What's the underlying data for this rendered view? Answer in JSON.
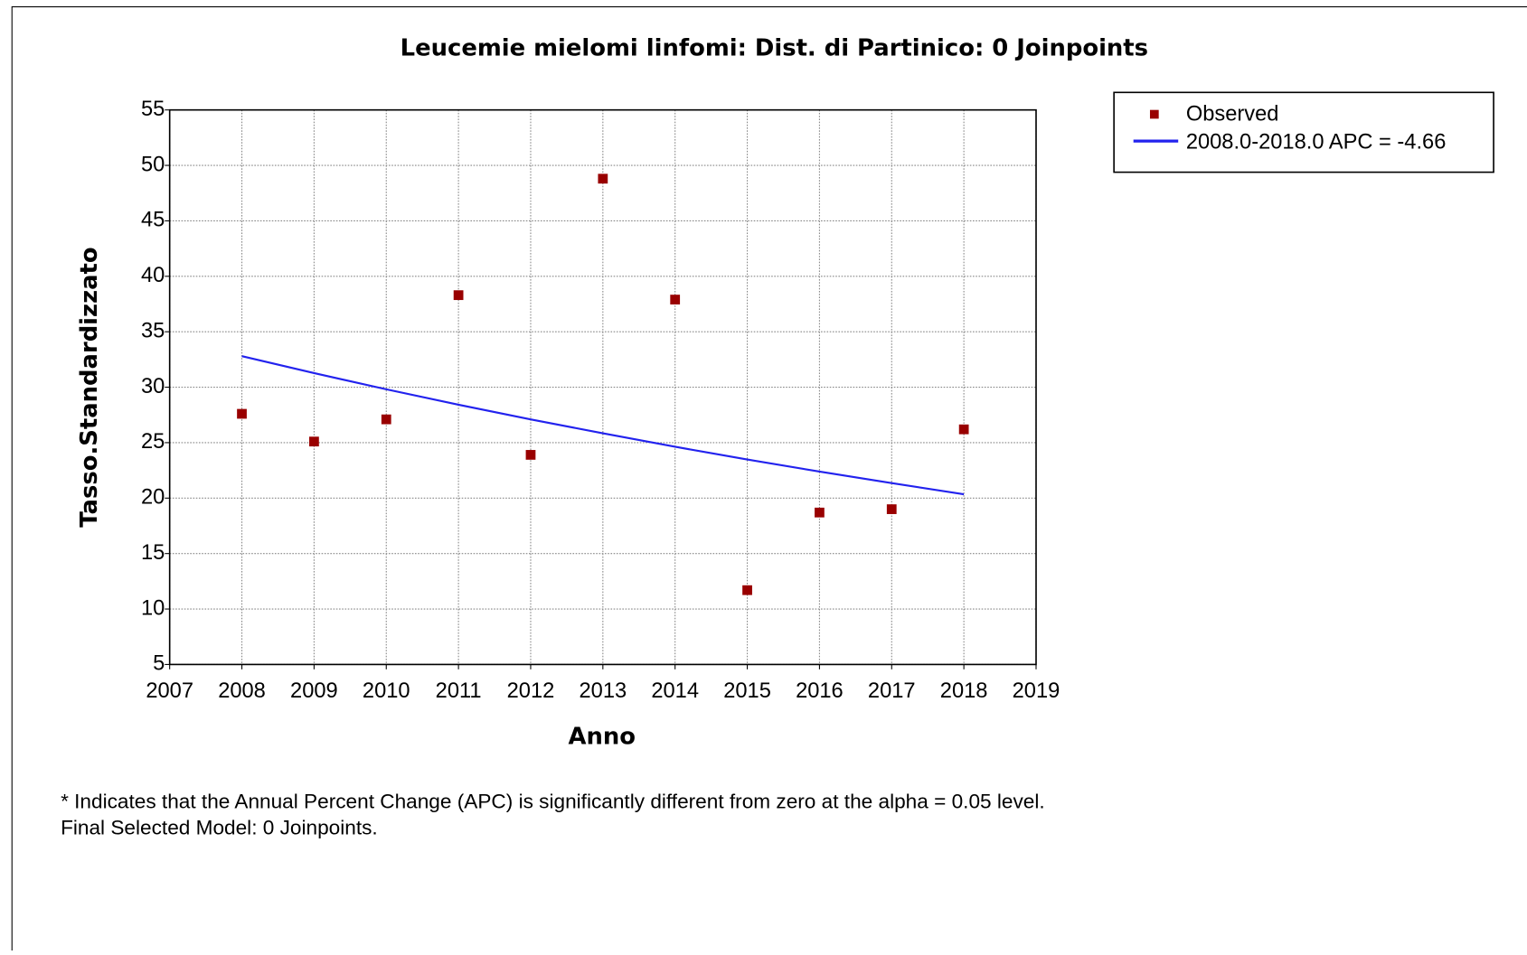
{
  "chart_data": {
    "type": "scatter",
    "title": "Leucemie mielomi linfomi: Dist. di Partinico: 0 Joinpoints",
    "x_label": "Anno",
    "y_label": "Tasso.Standardizzato",
    "x": [
      2008,
      2009,
      2010,
      2011,
      2012,
      2013,
      2014,
      2015,
      2016,
      2017,
      2018
    ],
    "series": [
      {
        "name": "Observed",
        "color": "#990000",
        "mode": "markers",
        "values": [
          27.6,
          25.1,
          27.1,
          38.3,
          23.9,
          48.8,
          37.9,
          11.7,
          18.7,
          19.0,
          26.2
        ]
      },
      {
        "name": "2008.0-2018.0 APC  = -4.66",
        "color": "#2222ee",
        "mode": "line",
        "values": [
          32.8,
          31.27,
          29.81,
          28.42,
          27.1,
          25.84,
          24.63,
          23.48,
          22.39,
          21.35,
          20.35
        ]
      }
    ],
    "xlim": [
      2007,
      2019
    ],
    "xticks": [
      2007,
      2008,
      2009,
      2010,
      2011,
      2012,
      2013,
      2014,
      2015,
      2016,
      2017,
      2018,
      2019
    ],
    "ylim": [
      5,
      55
    ],
    "yticks": [
      5,
      10,
      15,
      20,
      25,
      30,
      35,
      40,
      45,
      50,
      55
    ],
    "grid": true,
    "legend": "upper right",
    "notes": [
      "* Indicates that the Annual Percent Change (APC) is significantly different from zero at the alpha = 0.05 level.",
      "Final Selected Model: 0 Joinpoints."
    ]
  }
}
